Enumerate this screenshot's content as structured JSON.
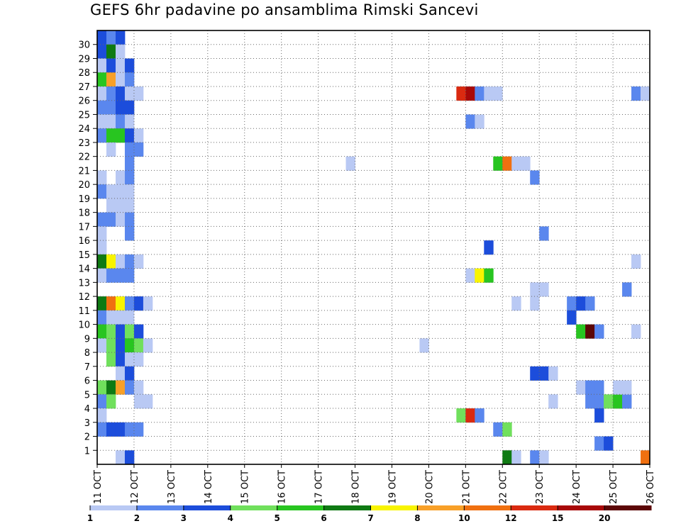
{
  "chart_data": {
    "type": "heatmap",
    "title": "GEFS 6hr padavine po ansamblima Rimski Sancevi",
    "xlabel": "",
    "ylabel": "",
    "x_ticks": [
      "11 OCT",
      "12 OCT",
      "13 OCT",
      "14 OCT",
      "15 OCT",
      "16 OCT",
      "17 OCT",
      "18 OCT",
      "19 OCT",
      "20 OCT",
      "21 OCT",
      "22 OCT",
      "23 OCT",
      "24 OCT",
      "25 OCT",
      "26 OCT"
    ],
    "y_ticks": [
      "1",
      "2",
      "3",
      "4",
      "5",
      "6",
      "7",
      "8",
      "9",
      "10",
      "11",
      "12",
      "13",
      "14",
      "15",
      "16",
      "17",
      "18",
      "19",
      "20",
      "21",
      "22",
      "23",
      "24",
      "25",
      "26",
      "27",
      "28",
      "29",
      "30"
    ],
    "xlim": [
      0,
      60
    ],
    "ylim": [
      0,
      30
    ],
    "x_step_hours": 6,
    "grid": "dotted",
    "colorbar": {
      "placement": "bottom",
      "labels": [
        "1",
        "2",
        "3",
        "4",
        "5",
        "6",
        "7",
        "8",
        "10",
        "12",
        "15",
        "20"
      ],
      "colors": [
        "#b9c9f4",
        "#5a87ee",
        "#1c4ddb",
        "#70e05c",
        "#28c520",
        "#0f7a13",
        "#f8f400",
        "#f8a028",
        "#f07010",
        "#da2a10",
        "#a80808",
        "#5c0707"
      ]
    },
    "cells": [
      [
        0,
        30,
        3
      ],
      [
        1,
        30,
        2
      ],
      [
        2,
        30,
        3
      ],
      [
        0,
        29,
        3
      ],
      [
        1,
        29,
        6
      ],
      [
        2,
        29,
        1
      ],
      [
        0,
        28,
        1
      ],
      [
        1,
        28,
        3
      ],
      [
        2,
        28,
        1
      ],
      [
        3,
        28,
        3
      ],
      [
        0,
        27,
        5
      ],
      [
        1,
        27,
        8
      ],
      [
        2,
        27,
        1
      ],
      [
        3,
        27,
        2
      ],
      [
        0,
        26,
        1
      ],
      [
        1,
        26,
        2
      ],
      [
        2,
        26,
        3
      ],
      [
        3,
        26,
        1
      ],
      [
        4,
        26,
        1
      ],
      [
        0,
        25,
        2
      ],
      [
        1,
        25,
        2
      ],
      [
        2,
        25,
        3
      ],
      [
        3,
        25,
        3
      ],
      [
        0,
        24,
        1
      ],
      [
        1,
        24,
        1
      ],
      [
        2,
        24,
        2
      ],
      [
        3,
        24,
        1
      ],
      [
        0,
        23,
        2
      ],
      [
        1,
        23,
        5
      ],
      [
        2,
        23,
        5
      ],
      [
        3,
        23,
        3
      ],
      [
        4,
        23,
        1
      ],
      [
        1,
        22,
        1
      ],
      [
        3,
        22,
        2
      ],
      [
        4,
        22,
        2
      ],
      [
        3,
        21,
        2
      ],
      [
        0,
        20,
        1
      ],
      [
        2,
        20,
        1
      ],
      [
        3,
        20,
        2
      ],
      [
        0,
        19,
        2
      ],
      [
        1,
        19,
        1
      ],
      [
        2,
        19,
        1
      ],
      [
        3,
        19,
        1
      ],
      [
        1,
        18,
        1
      ],
      [
        2,
        18,
        1
      ],
      [
        3,
        18,
        1
      ],
      [
        0,
        17,
        2
      ],
      [
        1,
        17,
        2
      ],
      [
        2,
        17,
        1
      ],
      [
        3,
        17,
        2
      ],
      [
        0,
        16,
        1
      ],
      [
        3,
        16,
        2
      ],
      [
        0,
        15,
        1
      ],
      [
        0,
        14,
        6
      ],
      [
        1,
        14,
        7
      ],
      [
        2,
        14,
        1
      ],
      [
        3,
        14,
        2
      ],
      [
        4,
        14,
        1
      ],
      [
        0,
        13,
        1
      ],
      [
        1,
        13,
        2
      ],
      [
        2,
        13,
        2
      ],
      [
        3,
        13,
        2
      ],
      [
        0,
        11,
        6
      ],
      [
        1,
        11,
        9
      ],
      [
        2,
        11,
        7
      ],
      [
        3,
        11,
        2
      ],
      [
        4,
        11,
        3
      ],
      [
        5,
        11,
        1
      ],
      [
        0,
        10,
        2
      ],
      [
        1,
        10,
        1
      ],
      [
        2,
        10,
        1
      ],
      [
        3,
        10,
        1
      ],
      [
        0,
        9,
        5
      ],
      [
        1,
        9,
        4
      ],
      [
        2,
        9,
        3
      ],
      [
        3,
        9,
        4
      ],
      [
        4,
        9,
        3
      ],
      [
        0,
        8,
        1
      ],
      [
        1,
        8,
        4
      ],
      [
        2,
        8,
        3
      ],
      [
        3,
        8,
        5
      ],
      [
        4,
        8,
        4
      ],
      [
        5,
        8,
        1
      ],
      [
        1,
        7,
        4
      ],
      [
        2,
        7,
        3
      ],
      [
        3,
        7,
        1
      ],
      [
        4,
        7,
        1
      ],
      [
        2,
        6,
        1
      ],
      [
        3,
        6,
        3
      ],
      [
        0,
        5,
        4
      ],
      [
        1,
        5,
        6
      ],
      [
        2,
        5,
        8
      ],
      [
        3,
        5,
        2
      ],
      [
        4,
        5,
        1
      ],
      [
        0,
        4,
        2
      ],
      [
        1,
        4,
        4
      ],
      [
        4,
        4,
        1
      ],
      [
        5,
        4,
        1
      ],
      [
        0,
        3,
        1
      ],
      [
        0,
        2,
        2
      ],
      [
        1,
        2,
        3
      ],
      [
        2,
        2,
        3
      ],
      [
        3,
        2,
        2
      ],
      [
        4,
        2,
        2
      ],
      [
        2,
        0,
        1
      ],
      [
        3,
        0,
        3
      ],
      [
        27,
        21,
        1
      ],
      [
        35,
        8,
        1
      ],
      [
        39,
        26,
        10
      ],
      [
        40,
        26,
        11
      ],
      [
        41,
        26,
        2
      ],
      [
        42,
        26,
        1
      ],
      [
        43,
        26,
        1
      ],
      [
        40,
        24,
        2
      ],
      [
        41,
        24,
        1
      ],
      [
        42,
        15,
        3
      ],
      [
        40,
        13,
        1
      ],
      [
        41,
        13,
        7
      ],
      [
        42,
        13,
        5
      ],
      [
        39,
        3,
        4
      ],
      [
        40,
        3,
        10
      ],
      [
        41,
        3,
        2
      ],
      [
        43,
        21,
        5
      ],
      [
        44,
        21,
        9
      ],
      [
        45,
        21,
        1
      ],
      [
        46,
        21,
        1
      ],
      [
        43,
        2,
        2
      ],
      [
        44,
        2,
        4
      ],
      [
        45,
        11,
        1
      ],
      [
        44,
        0,
        6
      ],
      [
        45,
        0,
        1
      ],
      [
        47,
        20,
        2
      ],
      [
        47,
        12,
        1
      ],
      [
        48,
        12,
        1
      ],
      [
        47,
        11,
        1
      ],
      [
        47,
        6,
        3
      ],
      [
        48,
        6,
        3
      ],
      [
        49,
        6,
        1
      ],
      [
        47,
        0,
        2
      ],
      [
        48,
        0,
        1
      ],
      [
        48,
        16,
        2
      ],
      [
        49,
        4,
        1
      ],
      [
        51,
        11,
        2
      ],
      [
        52,
        11,
        3
      ],
      [
        53,
        11,
        2
      ],
      [
        51,
        10,
        3
      ],
      [
        52,
        9,
        5
      ],
      [
        53,
        9,
        12
      ],
      [
        54,
        9,
        2
      ],
      [
        52,
        5,
        1
      ],
      [
        53,
        5,
        2
      ],
      [
        54,
        5,
        2
      ],
      [
        53,
        4,
        2
      ],
      [
        54,
        4,
        2
      ],
      [
        55,
        4,
        4
      ],
      [
        56,
        4,
        5
      ],
      [
        57,
        4,
        2
      ],
      [
        54,
        3,
        3
      ],
      [
        54,
        1,
        2
      ],
      [
        55,
        1,
        3
      ],
      [
        56,
        5,
        1
      ],
      [
        57,
        5,
        1
      ],
      [
        58,
        26,
        2
      ],
      [
        59,
        26,
        1
      ],
      [
        58,
        14,
        1
      ],
      [
        57,
        12,
        2
      ],
      [
        58,
        9,
        1
      ],
      [
        59,
        0,
        9
      ]
    ]
  }
}
